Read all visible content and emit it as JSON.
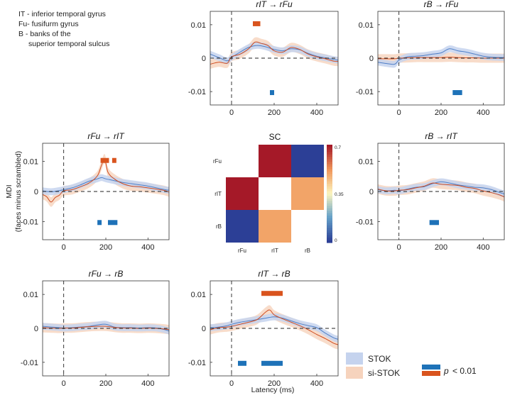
{
  "legend_abbrev": [
    "IT - inferior temporal gyrus",
    "Fu- fusifurm gyrus",
    "B  - banks of the",
    "superior temporal sulcus"
  ],
  "ylabel_main": "MDI",
  "ylabel_sub": "(faces minus scrambled)",
  "xlabel": "Latency (ms)",
  "legend": {
    "stok": "STOK",
    "sistok": "si-STOK",
    "sig_p": "p",
    "sig_rest": "< 0.01"
  },
  "colors": {
    "stok_line": "#4f7fc7",
    "stok_band": "#c5d3ee",
    "sistok_line": "#cf4b1f",
    "sistok_band": "#f6d3bd",
    "sig_blue": "#1e72b8",
    "sig_red": "#d9541e",
    "sig_red_dark": "#d6322a"
  },
  "chart_data": [
    {
      "id": "rIT_rFu",
      "type": "line",
      "title": "rIT → rFu",
      "xlim": [
        -100,
        500
      ],
      "ylim": [
        -0.014,
        0.014
      ],
      "xticks": [
        0,
        200,
        400
      ],
      "xtick_labels": [
        "0",
        "200",
        "400"
      ],
      "yticks": [
        -0.01,
        0,
        0.01
      ],
      "ytick_labels": [
        "-0.01",
        "0",
        "0.01"
      ],
      "series": [
        {
          "name": "STOK",
          "x": [
            -100,
            -60,
            -20,
            0,
            40,
            80,
            120,
            160,
            200,
            240,
            280,
            320,
            360,
            400,
            440,
            480,
            500
          ],
          "y": [
            0.0012,
            0.0002,
            -0.0008,
            0.0002,
            0.0018,
            0.0032,
            0.0038,
            0.0034,
            0.0026,
            0.0022,
            0.0028,
            0.0025,
            0.0014,
            0.0006,
            0.0001,
            -0.0004,
            -0.0006
          ]
        },
        {
          "name": "si-STOK",
          "x": [
            -100,
            -60,
            -20,
            0,
            40,
            80,
            110,
            140,
            170,
            200,
            240,
            280,
            320,
            360,
            400,
            440,
            480,
            500
          ],
          "y": [
            -0.0018,
            -0.0012,
            -0.0015,
            0.0004,
            0.0012,
            0.0028,
            0.0048,
            0.0044,
            0.0038,
            0.0022,
            0.0018,
            0.0032,
            0.0026,
            0.0012,
            0.0004,
            -0.0002,
            -0.0009,
            -0.001
          ]
        }
      ],
      "sig_blue": [
        [
          180,
          200
        ]
      ],
      "sig_red": [
        [
          100,
          135
        ]
      ]
    },
    {
      "id": "rB_rFu",
      "type": "line",
      "title": "rB → rFu",
      "xlim": [
        -100,
        500
      ],
      "ylim": [
        -0.014,
        0.014
      ],
      "xticks": [
        0,
        200,
        400
      ],
      "xtick_labels": [
        "0",
        "200",
        "400"
      ],
      "yticks": [
        -0.01,
        0,
        0.01
      ],
      "ytick_labels": [
        "-0.01",
        "0",
        "0.01"
      ],
      "series": [
        {
          "name": "STOK",
          "x": [
            -100,
            -60,
            -20,
            0,
            40,
            80,
            120,
            160,
            200,
            240,
            280,
            320,
            360,
            400,
            440,
            480,
            500
          ],
          "y": [
            -0.0012,
            -0.0016,
            -0.0018,
            -0.0006,
            0.0004,
            0.0006,
            0.0008,
            0.0012,
            0.0016,
            0.0028,
            0.0022,
            0.0018,
            0.0012,
            0.0006,
            0.0003,
            0.0002,
            0.0002
          ]
        },
        {
          "name": "si-STOK",
          "x": [
            -100,
            -60,
            -20,
            0,
            40,
            80,
            120,
            160,
            200,
            240,
            280,
            320,
            360,
            400,
            440,
            480,
            500
          ],
          "y": [
            -0.0002,
            -0.0002,
            -0.0002,
            0,
            0.0001,
            0.0002,
            0.0002,
            0.0002,
            0.0002,
            0.0003,
            0.0002,
            0.0001,
            0.0001,
            0,
            0,
            0,
            0
          ]
        }
      ],
      "sig_blue": [
        [
          255,
          300
        ]
      ],
      "sig_red": []
    },
    {
      "id": "rFu_rIT",
      "type": "line",
      "title": "rFu → rIT",
      "xlim": [
        -100,
        500
      ],
      "ylim": [
        -0.016,
        0.016
      ],
      "xticks": [
        0,
        200,
        400
      ],
      "xtick_labels": [
        "0",
        "200",
        "400"
      ],
      "yticks": [
        -0.01,
        0,
        0.01
      ],
      "ytick_labels": [
        "-0.01",
        "0",
        "0.01"
      ],
      "series": [
        {
          "name": "STOK",
          "x": [
            -100,
            -60,
            -20,
            0,
            40,
            80,
            120,
            160,
            180,
            200,
            240,
            280,
            320,
            360,
            400,
            440,
            480,
            500
          ],
          "y": [
            0.0002,
            -0.0001,
            0.0003,
            0.0006,
            0.0012,
            0.0022,
            0.0034,
            0.0042,
            0.0046,
            0.0042,
            0.0036,
            0.003,
            0.0026,
            0.0022,
            0.0018,
            0.0012,
            0.0006,
            0.0004
          ]
        },
        {
          "name": "si-STOK",
          "x": [
            -100,
            -80,
            -60,
            -40,
            -20,
            0,
            40,
            80,
            120,
            160,
            180,
            195,
            210,
            240,
            280,
            320,
            360,
            400,
            440,
            480,
            500
          ],
          "y": [
            -0.001,
            -0.0018,
            -0.0035,
            -0.002,
            -0.0012,
            0.0002,
            0.0006,
            0.0016,
            0.0028,
            0.0052,
            0.0088,
            0.0108,
            0.0064,
            0.0042,
            0.0026,
            0.0018,
            0.0016,
            0.0012,
            0.0008,
            0.0003,
            -0.0002
          ]
        }
      ],
      "sig_blue": [
        [
          160,
          180
        ],
        [
          210,
          255
        ]
      ],
      "sig_red": [
        [
          175,
          215
        ],
        [
          230,
          250
        ]
      ]
    },
    {
      "id": "rB_rIT",
      "type": "line",
      "title": "rB → rIT",
      "xlim": [
        -100,
        500
      ],
      "ylim": [
        -0.016,
        0.016
      ],
      "xticks": [
        0,
        200,
        400
      ],
      "xtick_labels": [
        "0",
        "200",
        "400"
      ],
      "yticks": [
        -0.01,
        0,
        0.01
      ],
      "ytick_labels": [
        "-0.01",
        "0",
        "0.01"
      ],
      "series": [
        {
          "name": "STOK",
          "x": [
            -100,
            -60,
            -20,
            0,
            40,
            80,
            120,
            160,
            200,
            240,
            280,
            320,
            360,
            400,
            440,
            480,
            500
          ],
          "y": [
            0.0006,
            0.0002,
            0.0004,
            0.0002,
            0.0008,
            0.0014,
            0.0016,
            0.0026,
            0.0032,
            0.0028,
            0.0022,
            0.0018,
            0.0014,
            0.0012,
            0.0006,
            -0.0004,
            -0.0008
          ]
        },
        {
          "name": "si-STOK",
          "x": [
            -100,
            -60,
            -20,
            0,
            40,
            80,
            120,
            160,
            200,
            240,
            280,
            320,
            360,
            400,
            440,
            480,
            500
          ],
          "y": [
            0.0008,
            0.0002,
            0.0002,
            0.0004,
            0.0006,
            0.0012,
            0.0018,
            0.0028,
            0.0024,
            0.0022,
            0.002,
            0.0014,
            0.001,
            0.0002,
            -0.0004,
            -0.0012,
            -0.0018
          ]
        }
      ],
      "sig_blue": [
        [
          145,
          190
        ]
      ],
      "sig_red": []
    },
    {
      "id": "rFu_rB",
      "type": "line",
      "title": "rFu → rB",
      "xlim": [
        -100,
        500
      ],
      "ylim": [
        -0.014,
        0.014
      ],
      "xticks": [
        0,
        200,
        400
      ],
      "xtick_labels": [
        "0",
        "200",
        "400"
      ],
      "yticks": [
        -0.01,
        0,
        0.01
      ],
      "ytick_labels": [
        "-0.01",
        "0",
        "0.01"
      ],
      "series": [
        {
          "name": "STOK",
          "x": [
            -100,
            -60,
            -20,
            0,
            40,
            80,
            120,
            160,
            200,
            240,
            280,
            320,
            360,
            400,
            440,
            480,
            500
          ],
          "y": [
            0.0006,
            0.0004,
            0.0002,
            0.0001,
            0.0002,
            0.0004,
            0.0006,
            0.001,
            0.0012,
            0.0004,
            0.0002,
            0.0002,
            0.0001,
            0.0002,
            0.0001,
            -0.0004,
            -0.0008
          ]
        },
        {
          "name": "si-STOK",
          "x": [
            -100,
            -60,
            -20,
            0,
            40,
            80,
            120,
            160,
            200,
            240,
            280,
            320,
            360,
            400,
            440,
            480,
            500
          ],
          "y": [
            0.0002,
            0.0001,
            0,
            0.0001,
            0.0001,
            0.0003,
            0.0005,
            0.0006,
            0.0006,
            0.0003,
            0.0001,
            0.0001,
            0,
            0.0001,
            0,
            -0.0002,
            -0.0004
          ]
        }
      ],
      "sig_blue": [],
      "sig_red": []
    },
    {
      "id": "rIT_rB",
      "type": "line",
      "title": "rIT → rB",
      "xlim": [
        -100,
        500
      ],
      "ylim": [
        -0.014,
        0.014
      ],
      "xticks": [
        0,
        200,
        400
      ],
      "xtick_labels": [
        "0",
        "200",
        "400"
      ],
      "yticks": [
        -0.01,
        0,
        0.01
      ],
      "ytick_labels": [
        "-0.01",
        "0",
        "0.01"
      ],
      "series": [
        {
          "name": "STOK",
          "x": [
            -100,
            -60,
            -20,
            0,
            40,
            80,
            120,
            160,
            200,
            240,
            280,
            320,
            360,
            400,
            440,
            480,
            500
          ],
          "y": [
            0.0002,
            0.0004,
            0.0008,
            0.0012,
            0.0018,
            0.0022,
            0.0026,
            0.003,
            0.0034,
            0.003,
            0.0022,
            0.0014,
            0.0008,
            0.0002,
            -0.0014,
            -0.0028,
            -0.0032
          ]
        },
        {
          "name": "si-STOK",
          "x": [
            -100,
            -60,
            -20,
            0,
            40,
            80,
            120,
            160,
            180,
            200,
            240,
            280,
            320,
            360,
            400,
            440,
            480,
            500
          ],
          "y": [
            -0.0004,
            0.0002,
            0.0004,
            0.0006,
            0.0012,
            0.0018,
            0.0026,
            0.0048,
            0.0054,
            0.004,
            0.0028,
            0.0018,
            0.0008,
            -0.0004,
            -0.0018,
            -0.003,
            -0.0044,
            -0.0048
          ]
        }
      ],
      "sig_blue": [
        [
          30,
          70
        ],
        [
          140,
          240
        ]
      ],
      "sig_red": [
        [
          140,
          240
        ]
      ]
    },
    {
      "id": "SC",
      "type": "heatmap",
      "title": "SC",
      "rows": [
        "rFu",
        "rIT",
        "rB"
      ],
      "cols": [
        "rFu",
        "rIT",
        "rB"
      ],
      "values": [
        [
          null,
          0.7,
          0.0
        ],
        [
          0.7,
          null,
          0.5
        ],
        [
          0.0,
          0.5,
          null
        ]
      ],
      "colorbar_range": [
        0,
        0.7
      ],
      "colorbar_ticks": [
        "0.7",
        "0.35",
        "0"
      ]
    }
  ]
}
